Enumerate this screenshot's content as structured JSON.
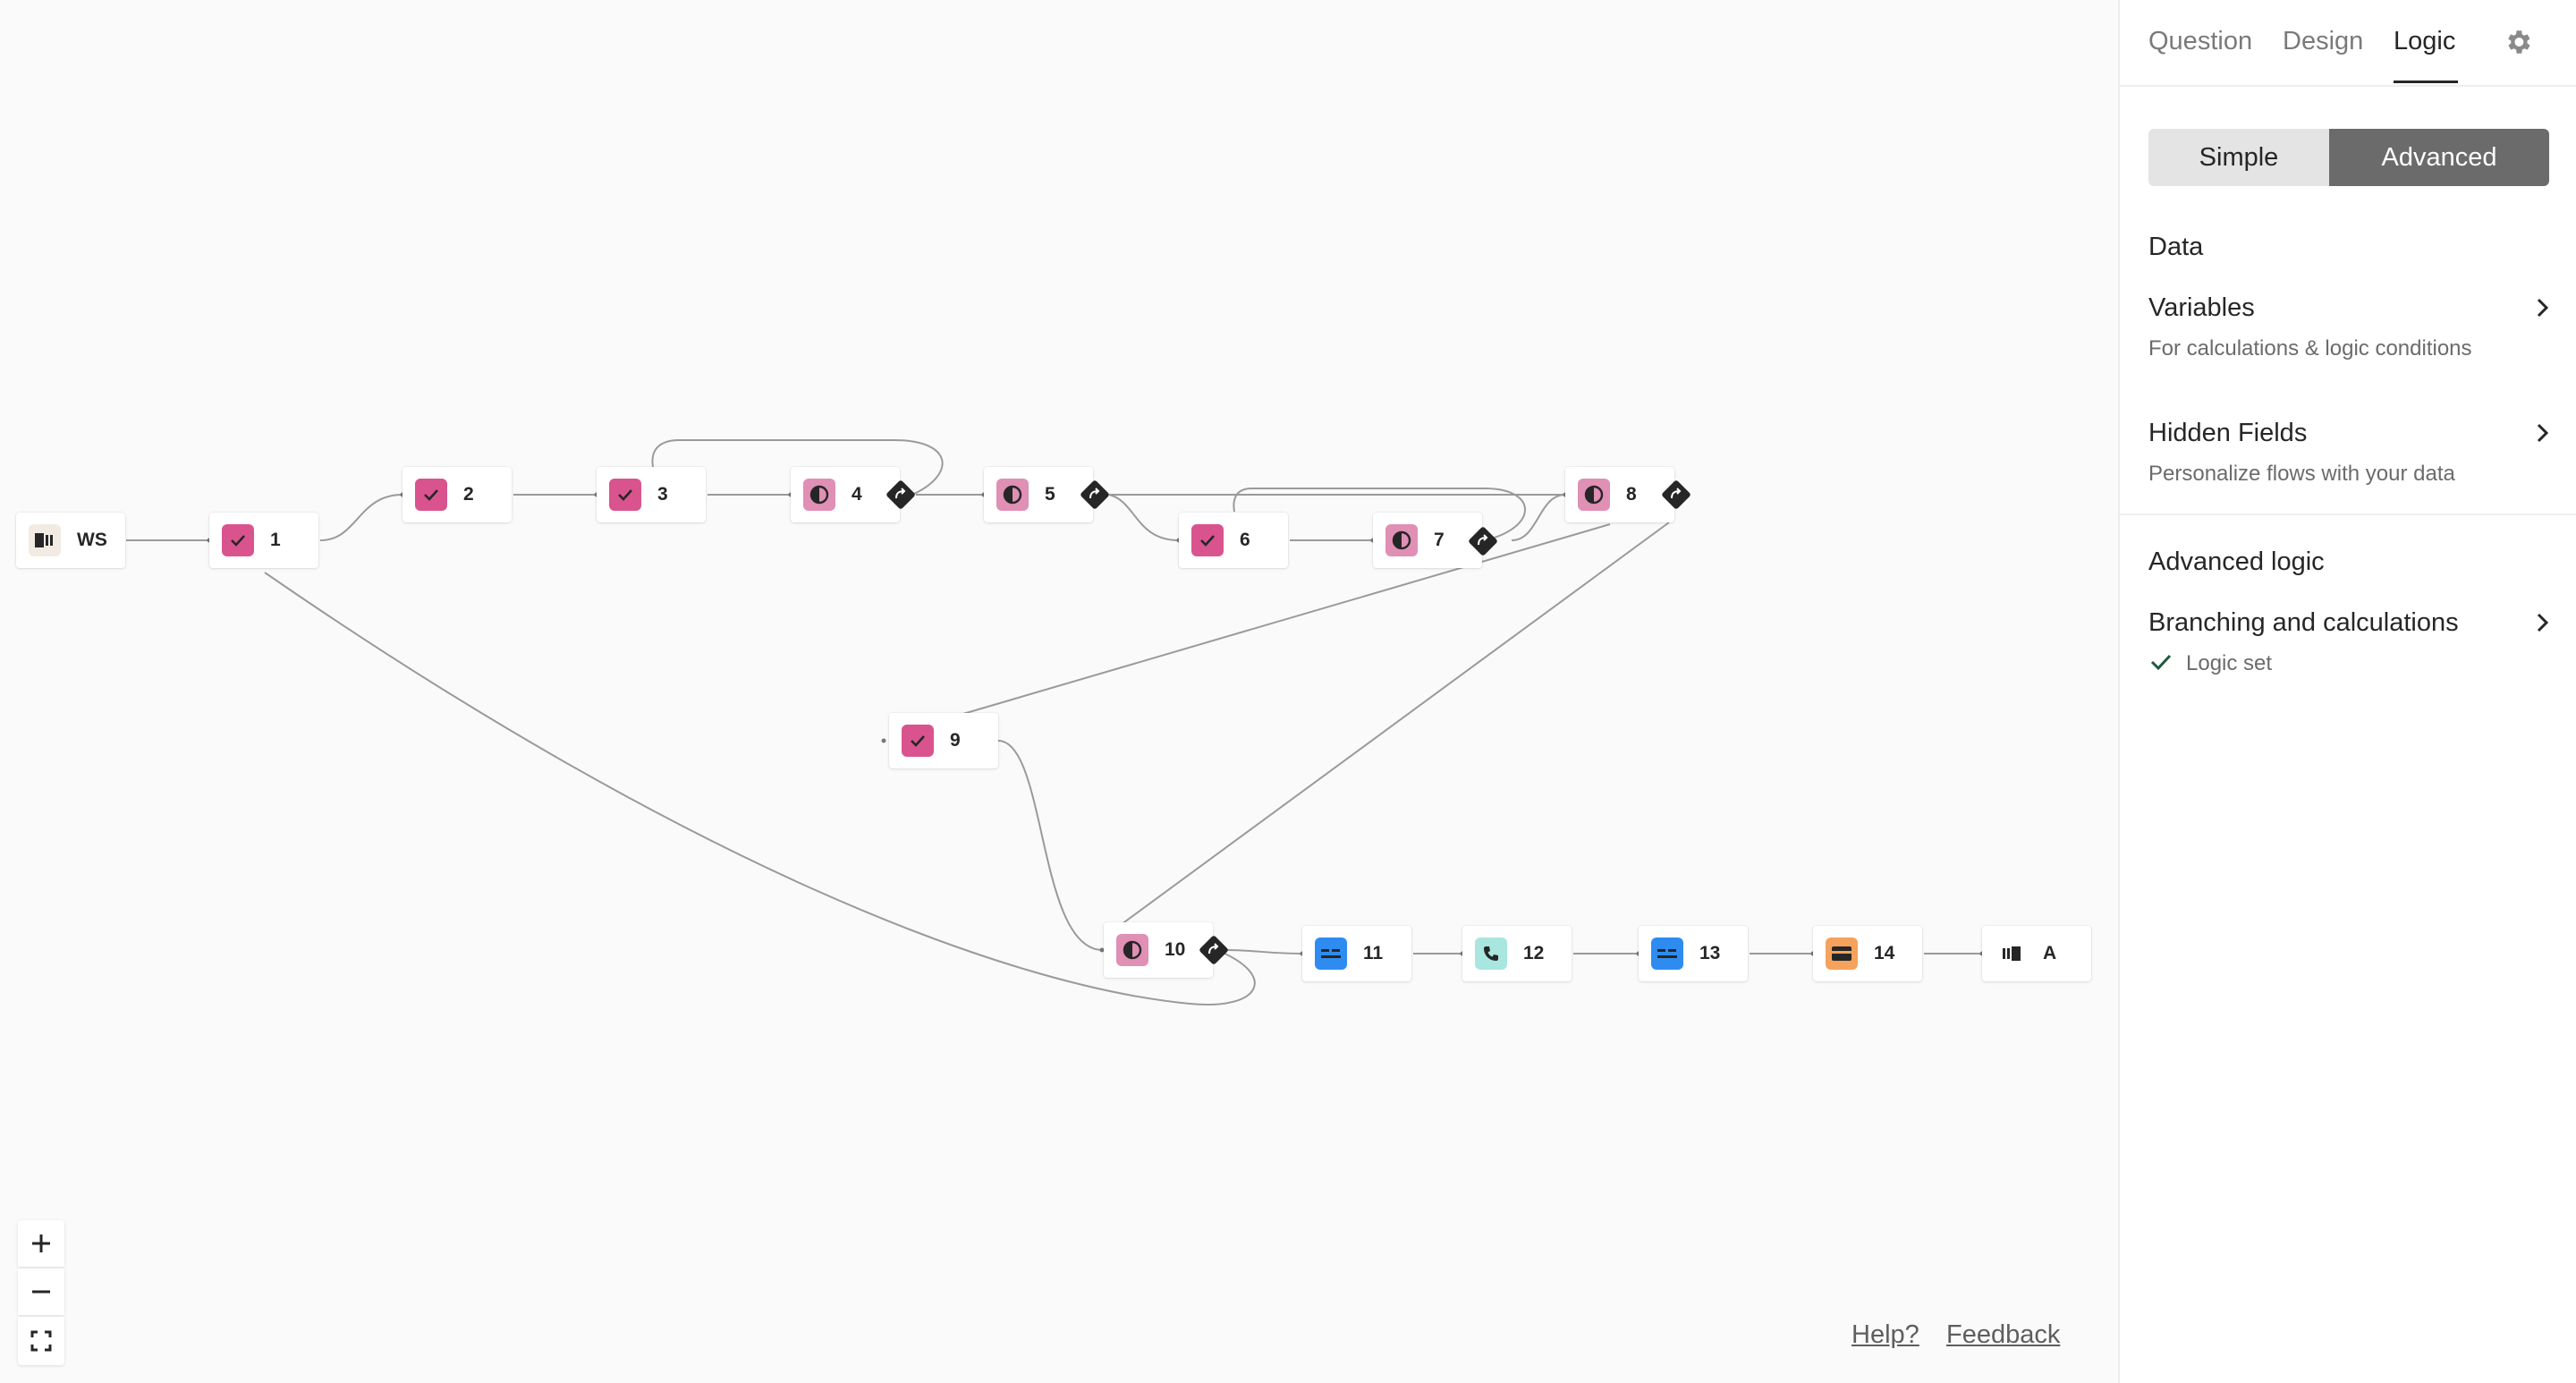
{
  "canvas": {
    "nodes": [
      {
        "id": "ws",
        "label": "WS",
        "type": "welcome"
      },
      {
        "id": "n1",
        "label": "1",
        "type": "checkbox"
      },
      {
        "id": "n2",
        "label": "2",
        "type": "checkbox"
      },
      {
        "id": "n3",
        "label": "3",
        "type": "checkbox"
      },
      {
        "id": "n4",
        "label": "4",
        "type": "opinion"
      },
      {
        "id": "n5",
        "label": "5",
        "type": "opinion"
      },
      {
        "id": "n6",
        "label": "6",
        "type": "checkbox"
      },
      {
        "id": "n7",
        "label": "7",
        "type": "opinion"
      },
      {
        "id": "n8",
        "label": "8",
        "type": "opinion"
      },
      {
        "id": "n9",
        "label": "9",
        "type": "checkbox"
      },
      {
        "id": "n10",
        "label": "10",
        "type": "opinion"
      },
      {
        "id": "n11",
        "label": "11",
        "type": "short-text"
      },
      {
        "id": "n12",
        "label": "12",
        "type": "phone"
      },
      {
        "id": "n13",
        "label": "13",
        "type": "short-text"
      },
      {
        "id": "n14",
        "label": "14",
        "type": "payment"
      },
      {
        "id": "end",
        "label": "A",
        "type": "ending"
      }
    ],
    "colors": {
      "checkbox": "#d9548e",
      "opinion": "#e08fb5",
      "short-text": "#2e8cf0",
      "phone": "#a8e6df",
      "payment": "#f5a25d",
      "welcome": "#f1ebe4",
      "edge": "#8f8f8f",
      "logic": "#262627"
    },
    "zoom_controls": {
      "in_icon": "plus-icon",
      "out_icon": "minus-icon",
      "fit_icon": "fit-screen-icon"
    },
    "footer": {
      "help": "Help?",
      "feedback": "Feedback"
    }
  },
  "panel": {
    "tabs": [
      {
        "label": "Question"
      },
      {
        "label": "Design"
      },
      {
        "label": "Logic",
        "active": true
      }
    ],
    "settings_icon": "gear-icon",
    "mode": {
      "simple": "Simple",
      "advanced": "Advanced",
      "selected": "Advanced"
    },
    "data_section": {
      "title": "Data",
      "variables": {
        "title": "Variables",
        "subtitle": "For calculations & logic conditions"
      },
      "hidden_fields": {
        "title": "Hidden Fields",
        "subtitle": "Personalize flows with your data"
      }
    },
    "advanced_section": {
      "title": "Advanced logic",
      "branching": {
        "title": "Branching and calculations",
        "status": "Logic set"
      }
    }
  }
}
